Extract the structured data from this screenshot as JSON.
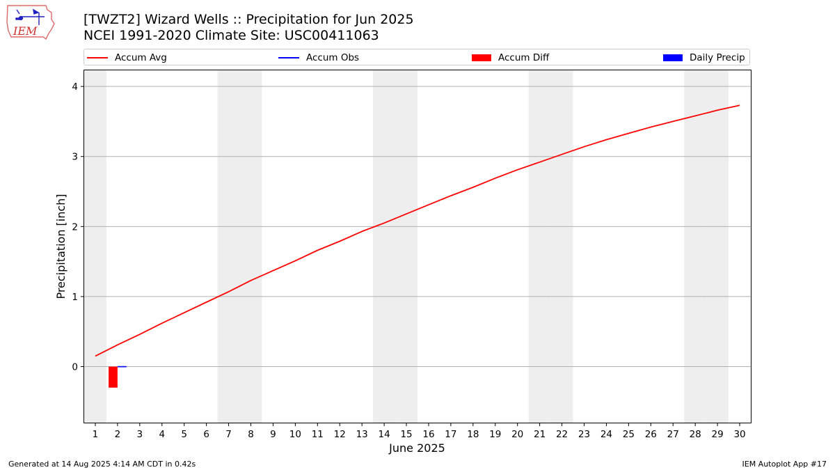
{
  "header": {
    "logo_text": "IEM",
    "title_line1": "[TWZT2] Wizard Wells :: Precipitation for Jun 2025",
    "title_line2": "NCEI 1991-2020 Climate Site: USC00411063"
  },
  "legend": {
    "placement": "top",
    "items": [
      {
        "label": "Accum Avg",
        "kind": "line",
        "color": "#ff0000"
      },
      {
        "label": "Accum Obs",
        "kind": "line",
        "color": "#0000ff"
      },
      {
        "label": "Accum Diff",
        "kind": "bar",
        "color": "#ff0000"
      },
      {
        "label": "Daily Precip",
        "kind": "bar",
        "color": "#0000ff"
      }
    ]
  },
  "chart_data": {
    "type": "line",
    "title": "[TWZT2] Wizard Wells :: Precipitation for Jun 2025",
    "subtitle": "NCEI 1991-2020 Climate Site: USC00411063",
    "xlabel": "June 2025",
    "ylabel": "Precipitation [inch]",
    "x": [
      1,
      2,
      3,
      4,
      5,
      6,
      7,
      8,
      9,
      10,
      11,
      12,
      13,
      14,
      15,
      16,
      17,
      18,
      19,
      20,
      21,
      22,
      23,
      24,
      25,
      26,
      27,
      28,
      29,
      30
    ],
    "xlim": [
      0.5,
      30.5
    ],
    "ylim": [
      -0.8,
      4.23
    ],
    "yticks": [
      0,
      1,
      2,
      3,
      4
    ],
    "grid": "y",
    "weekend_shading_days": [
      1,
      7,
      8,
      14,
      15,
      21,
      22,
      28,
      29
    ],
    "weekend_shading_color": "#eeeeee",
    "series": [
      {
        "name": "Accum Avg",
        "kind": "line",
        "color": "#ff0000",
        "values": [
          0.15,
          0.31,
          0.46,
          0.62,
          0.77,
          0.92,
          1.07,
          1.23,
          1.37,
          1.51,
          1.66,
          1.79,
          1.93,
          2.05,
          2.18,
          2.31,
          2.44,
          2.56,
          2.69,
          2.81,
          2.92,
          3.03,
          3.14,
          3.24,
          3.33,
          3.42,
          3.5,
          3.58,
          3.66,
          3.73
        ]
      },
      {
        "name": "Accum Obs",
        "kind": "line",
        "color": "#0000ff",
        "x": [
          2
        ],
        "values": [
          0.0
        ]
      },
      {
        "name": "Accum Diff",
        "kind": "bar",
        "color": "#ff0000",
        "x": [
          2
        ],
        "values": [
          -0.3
        ]
      },
      {
        "name": "Daily Precip",
        "kind": "bar",
        "color": "#0000ff",
        "x": [
          2
        ],
        "values": [
          0.0
        ]
      }
    ]
  },
  "footer": {
    "left": "Generated at 14 Aug 2025 4:14 AM CDT in 0.42s",
    "right": "IEM Autoplot App #17"
  }
}
